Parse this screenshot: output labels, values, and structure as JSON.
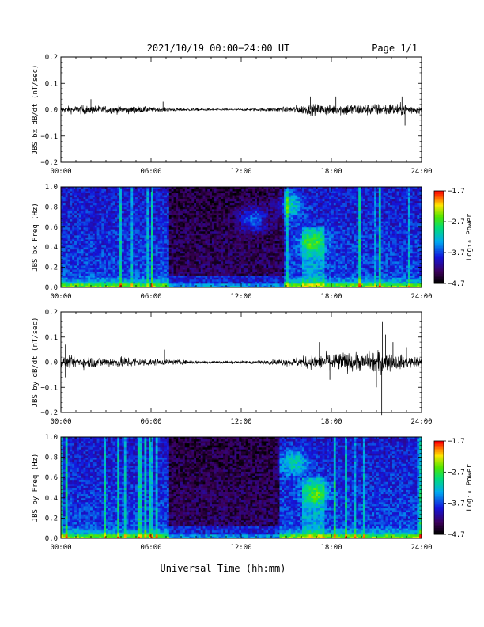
{
  "header": {
    "title": "2021/10/19  00:00−24:00 UT",
    "page": "Page 1/1"
  },
  "xlabel": "Universal Time (hh:mm)",
  "x_ticks": [
    "00:00",
    "06:00",
    "12:00",
    "18:00",
    "24:00"
  ],
  "chart_data": [
    {
      "type": "line",
      "ylabel": "JBS bx dB/dt (nT/sec)",
      "xlim": [
        0,
        24
      ],
      "ylim": [
        -0.2,
        0.2
      ],
      "y_ticks": [
        "0.2",
        "0.1",
        "0.0",
        "−0.1",
        "−0.2"
      ],
      "y_tick_values": [
        0.2,
        0.1,
        0.0,
        -0.1,
        -0.2
      ],
      "amplitude_profile": {
        "hours": [
          0,
          1.5,
          3,
          4.5,
          6,
          7.5,
          9,
          10.5,
          12,
          13.5,
          15,
          16,
          17,
          18,
          19,
          20,
          21,
          22,
          23,
          24
        ],
        "amplitude": [
          0.012,
          0.018,
          0.015,
          0.016,
          0.01,
          0.007,
          0.005,
          0.004,
          0.004,
          0.006,
          0.012,
          0.018,
          0.022,
          0.024,
          0.025,
          0.022,
          0.024,
          0.026,
          0.022,
          0.015
        ]
      },
      "spikes": [
        {
          "x": 2.0,
          "y": 0.04
        },
        {
          "x": 4.4,
          "y": 0.05
        },
        {
          "x": 6.8,
          "y": 0.03
        },
        {
          "x": 16.6,
          "y": 0.05
        },
        {
          "x": 18.3,
          "y": 0.05
        },
        {
          "x": 19.5,
          "y": 0.05
        },
        {
          "x": 22.7,
          "y": 0.05
        },
        {
          "x": 22.9,
          "y": -0.06
        }
      ]
    },
    {
      "type": "heatmap",
      "ylabel": "JBS bx Freq (Hz)",
      "xlim": [
        0,
        24
      ],
      "ylim": [
        0,
        1.0
      ],
      "y_ticks": [
        "1.0",
        "0.8",
        "0.6",
        "0.4",
        "0.2",
        "0.0"
      ],
      "y_tick_values": [
        1.0,
        0.8,
        0.6,
        0.4,
        0.2,
        0.0
      ],
      "colorbar": {
        "label": "Log₁₀ Power",
        "ticks": [
          "−1.7",
          "−2.7",
          "−3.7",
          "−4.7"
        ],
        "tick_values": [
          -1.7,
          -2.7,
          -3.7,
          -4.7
        ],
        "range": [
          -4.7,
          -1.7
        ]
      },
      "quiet_interval_hours": [
        7.2,
        14.8
      ],
      "features": [
        {
          "x": 15.2,
          "y": 0.82,
          "note": "blob"
        },
        {
          "x": 12.8,
          "y": 0.68,
          "note": "blob"
        },
        {
          "x": 16.8,
          "y": 0.45,
          "note": "enhanced"
        }
      ]
    },
    {
      "type": "line",
      "ylabel": "JBS by dB/dt (nT/sec)",
      "xlim": [
        0,
        24
      ],
      "ylim": [
        -0.2,
        0.2
      ],
      "y_ticks": [
        "0.2",
        "0.1",
        "0.0",
        "−0.1",
        "−0.2"
      ],
      "y_tick_values": [
        0.2,
        0.1,
        0.0,
        -0.1,
        -0.2
      ],
      "amplitude_profile": {
        "hours": [
          0,
          1.5,
          3,
          4.5,
          6,
          7.5,
          9,
          10.5,
          12,
          13.5,
          15,
          16,
          17,
          18,
          19,
          20,
          21,
          22,
          23,
          24
        ],
        "amplitude": [
          0.02,
          0.025,
          0.02,
          0.022,
          0.015,
          0.01,
          0.007,
          0.006,
          0.006,
          0.008,
          0.015,
          0.022,
          0.03,
          0.04,
          0.04,
          0.035,
          0.05,
          0.035,
          0.025,
          0.02
        ]
      },
      "spikes": [
        {
          "x": 0.3,
          "y": 0.07
        },
        {
          "x": 0.3,
          "y": -0.06
        },
        {
          "x": 6.9,
          "y": 0.05
        },
        {
          "x": 17.2,
          "y": 0.08
        },
        {
          "x": 17.9,
          "y": -0.07
        },
        {
          "x": 21.4,
          "y": 0.16
        },
        {
          "x": 21.35,
          "y": -0.21
        },
        {
          "x": 21.6,
          "y": 0.11
        },
        {
          "x": 21.0,
          "y": -0.1
        },
        {
          "x": 22.1,
          "y": 0.08
        },
        {
          "x": 23.0,
          "y": 0.06
        }
      ]
    },
    {
      "type": "heatmap",
      "ylabel": "JBS by Freq (Hz)",
      "xlim": [
        0,
        24
      ],
      "ylim": [
        0,
        1.0
      ],
      "y_ticks": [
        "1.0",
        "0.8",
        "0.6",
        "0.4",
        "0.2",
        "0.0"
      ],
      "y_tick_values": [
        1.0,
        0.8,
        0.6,
        0.4,
        0.2,
        0.0
      ],
      "colorbar": {
        "label": "Log₁₀ Power",
        "ticks": [
          "−1.7",
          "−2.7",
          "−3.7",
          "−4.7"
        ],
        "tick_values": [
          -1.7,
          -2.7,
          -3.7,
          -4.7
        ],
        "range": [
          -4.7,
          -1.7
        ]
      },
      "quiet_interval_hours": [
        7.2,
        14.6
      ],
      "features": [
        {
          "x": 15.5,
          "y": 0.75,
          "note": "blob"
        },
        {
          "x": 17.0,
          "y": 0.45,
          "note": "enhanced"
        }
      ]
    }
  ]
}
